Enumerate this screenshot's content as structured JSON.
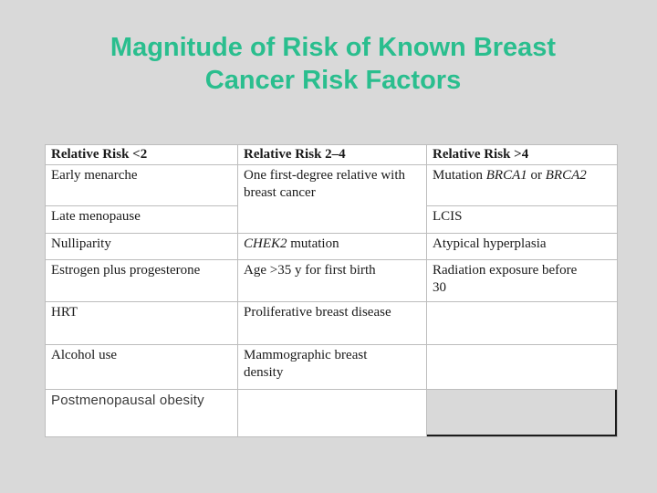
{
  "slide": {
    "background_color": "#d9d9d9",
    "title": {
      "line1": "Magnitude of Risk of Known Breast",
      "line2": "Cancer Risk Factors",
      "color": "#2abe8e"
    },
    "table": {
      "border_color": "#bdbdbd",
      "cell_background": "#ffffff",
      "headers": [
        "Relative Risk <2",
        "Relative Risk 2–4",
        "Relative Risk >4"
      ],
      "cells": {
        "early_menarche": "Early menarche",
        "first_degree_relative": "One first-degree relative with breast cancer",
        "mutation_prefix": "Mutation ",
        "brca1": "BRCA1",
        "mutation_or": " or ",
        "brca2": "BRCA2",
        "late_menopause": "Late menopause",
        "lcis": "LCIS",
        "nulliparity": "Nulliparity",
        "chek2": "CHEK2",
        "chek2_suffix": " mutation",
        "atypical_hyperplasia": "Atypical hyperplasia",
        "estrogen_progesterone": "Estrogen plus progesterone",
        "age_first_birth": "Age >35 y for first birth",
        "radiation_exposure": "Radiation exposure before 30",
        "hrt": "HRT",
        "proliferative": "Proliferative breast disease",
        "alcohol_use": "Alcohol use",
        "mammographic_density": "Mammographic breast density",
        "postmenopausal_obesity": "Postmenopausal obesity"
      },
      "placeholder_box": {
        "fill": "#d9d9d9",
        "edge_color": "#1c1c1c"
      }
    }
  }
}
